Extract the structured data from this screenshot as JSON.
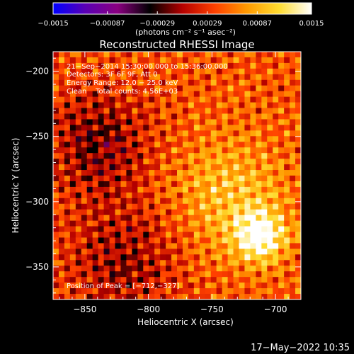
{
  "chart_data": {
    "type": "heatmap",
    "title": "Reconstructed RHESSI Image",
    "xlabel": "Heliocentric X (arcsec)",
    "ylabel": "Heliocentric Y (arcsec)",
    "xlim": [
      -875,
      -680
    ],
    "ylim": [
      -375,
      -185
    ],
    "xticks": [
      -850,
      -800,
      -750,
      -700
    ],
    "yticks": [
      -200,
      -250,
      -300,
      -350
    ],
    "xtick_labels": [
      "−850",
      "−800",
      "−750",
      "−700"
    ],
    "ytick_labels": [
      "−200",
      "−250",
      "−300",
      "−350"
    ],
    "colorbar": {
      "range": [
        -0.0015,
        0.0015
      ],
      "ticks": [
        -0.0015,
        -0.00087,
        -0.00029,
        0.00029,
        0.00087,
        0.0015
      ],
      "tick_labels": [
        "−0.0015",
        "−0.00087",
        "−0.00029",
        "0.00029",
        "0.00087",
        "0.0015"
      ],
      "unit_label": "(photons cm⁻² s⁻¹ asec⁻²)",
      "colors": [
        "#0000ff",
        "#5a00b4",
        "#8a0080",
        "#000000",
        "#b40000",
        "#ff4000",
        "#ff9a00",
        "#ffdc30",
        "#ffffff"
      ]
    },
    "peak": [
      -712,
      -327
    ],
    "annotations": [
      "21−Sep−2014 15:30:00.000 to 15:36:00.000",
      "Detectors: 3F 6F 9F, Att 0",
      "Energy Range: 12.0 − 25.0 keV",
      "Clean    Total counts: 4.56E+03"
    ],
    "peak_label": "Position of Peak = [−712,−327]",
    "grid": false
  },
  "footer": {
    "timestamp": "17−May−2022 10:35"
  }
}
